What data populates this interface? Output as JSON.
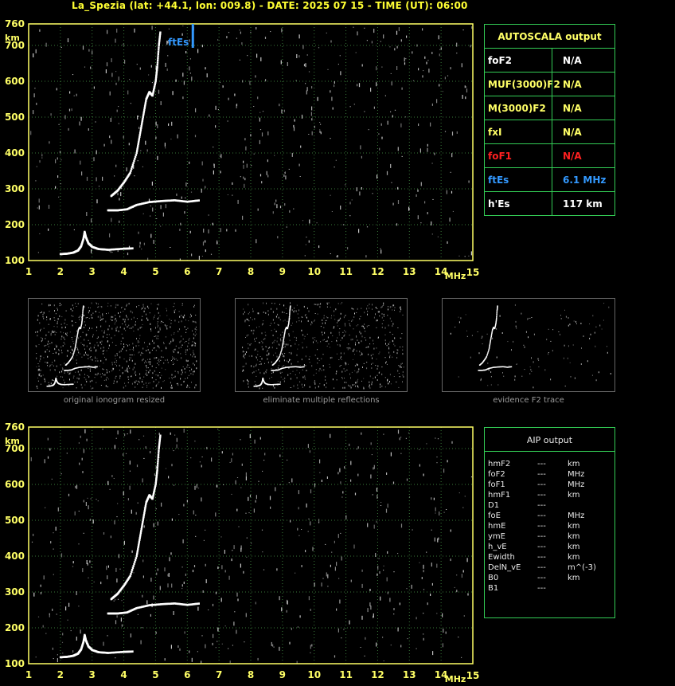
{
  "header": {
    "title": "La_Spezia (lat: +44.1, lon: 009.8) - DATE: 2025 07 15 - TIME (UT): 06:00"
  },
  "colors": {
    "axis": "#ffff66",
    "grid": "#3a7a3a",
    "trace": "#ffffff",
    "noise": "#d0d0d0",
    "ftes_marker": "#3399ff",
    "table_border": "#33cc55",
    "yellow": "#ffff66",
    "red": "#ff2020",
    "blue": "#3399ff"
  },
  "chart_data": [
    {
      "type": "scatter",
      "name": "main-ionogram",
      "xlabel": "MHz",
      "ylabel": "km",
      "xlim": [
        1,
        15
      ],
      "ylim": [
        100,
        760
      ],
      "xticks": [
        "1",
        "2",
        "3",
        "4",
        "5",
        "6",
        "7",
        "8",
        "9",
        "10",
        "11",
        "12",
        "13",
        "14",
        "15"
      ],
      "yticks": [
        "100",
        "200",
        "300",
        "400",
        "500",
        "600",
        "700",
        "760"
      ],
      "grid": true,
      "marker": {
        "label": "ftEs",
        "x": 6.1
      },
      "traces": [
        {
          "name": "E-layer trace",
          "points": [
            [
              2.0,
              118
            ],
            [
              2.2,
              119
            ],
            [
              2.4,
              122
            ],
            [
              2.55,
              128
            ],
            [
              2.65,
              140
            ],
            [
              2.72,
              160
            ],
            [
              2.76,
              180
            ],
            [
              2.8,
              165
            ],
            [
              2.88,
              148
            ],
            [
              3.0,
              138
            ],
            [
              3.2,
              132
            ],
            [
              3.5,
              130
            ],
            [
              4.0,
              133
            ],
            [
              4.3,
              134
            ]
          ]
        },
        {
          "name": "Es trace",
          "points": [
            [
              3.5,
              240
            ],
            [
              3.8,
              240
            ],
            [
              4.1,
              243
            ],
            [
              4.4,
              255
            ],
            [
              4.8,
              263
            ],
            [
              5.2,
              266
            ],
            [
              5.6,
              268
            ],
            [
              6.0,
              264
            ],
            [
              6.4,
              268
            ]
          ]
        },
        {
          "name": "F trace",
          "points": [
            [
              3.6,
              280
            ],
            [
              3.8,
              295
            ],
            [
              4.0,
              318
            ],
            [
              4.2,
              345
            ],
            [
              4.4,
              400
            ],
            [
              4.5,
              450
            ],
            [
              4.6,
              500
            ],
            [
              4.7,
              550
            ],
            [
              4.8,
              570
            ],
            [
              4.9,
              560
            ],
            [
              5.0,
              600
            ],
            [
              5.05,
              640
            ],
            [
              5.1,
              700
            ],
            [
              5.15,
              740
            ]
          ]
        }
      ]
    }
  ],
  "autoscala": {
    "title": "AUTOSCALA output",
    "rows": [
      {
        "key": "foF2",
        "value": "N/A",
        "color": "#ffffff"
      },
      {
        "key": "MUF(3000)F2",
        "value": "N/A",
        "color": "#ffff66"
      },
      {
        "key": "M(3000)F2",
        "value": "N/A",
        "color": "#ffff66"
      },
      {
        "key": "fxI",
        "value": "N/A",
        "color": "#ffff66"
      },
      {
        "key": "foF1",
        "value": "N/A",
        "color": "#ff2020"
      },
      {
        "key": "ftEs",
        "value": "6.1  MHz",
        "color": "#3399ff"
      },
      {
        "key": "h'Es",
        "value": "117     km",
        "color": "#ffffff"
      }
    ]
  },
  "thumbnails": [
    {
      "caption": "original ionogram resized"
    },
    {
      "caption": "eliminate multiple reflections"
    },
    {
      "caption": "evidence F2 trace"
    }
  ],
  "aip": {
    "title": "AIP output",
    "rows": [
      {
        "key": "hmF2",
        "dash": "---",
        "unit": "km"
      },
      {
        "key": "foF2",
        "dash": "---",
        "unit": "MHz"
      },
      {
        "key": "foF1",
        "dash": "---",
        "unit": "MHz"
      },
      {
        "key": "hmF1",
        "dash": "---",
        "unit": "km"
      },
      {
        "key": "D1",
        "dash": "---",
        "unit": ""
      },
      {
        "key": "foE",
        "dash": "---",
        "unit": "MHz"
      },
      {
        "key": "hmE",
        "dash": "---",
        "unit": "km"
      },
      {
        "key": "ymE",
        "dash": "---",
        "unit": "km"
      },
      {
        "key": "h_vE",
        "dash": "---",
        "unit": "km"
      },
      {
        "key": "Ewidth",
        "dash": "---",
        "unit": "km"
      },
      {
        "key": "DelN_vE",
        "dash": "---",
        "unit": "m^(-3)"
      },
      {
        "key": "B0",
        "dash": "---",
        "unit": "km"
      },
      {
        "key": "B1",
        "dash": "---",
        "unit": ""
      }
    ]
  }
}
